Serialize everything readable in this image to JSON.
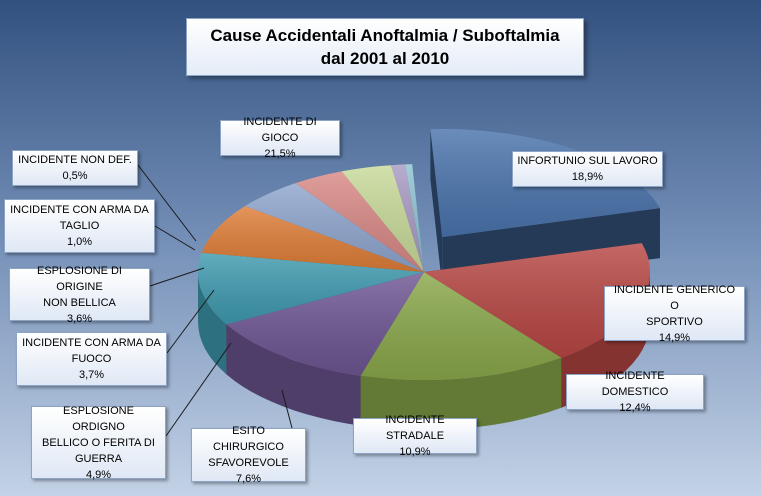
{
  "title": {
    "line1": "Cause Accidentali Anoftalmia / Suboftalmia",
    "line2": "dal 2001 al 2010"
  },
  "chart_data": {
    "type": "pie",
    "title": "Cause Accidentali Anoftalmia / Suboftalmia dal 2001 al 2010",
    "three_d": true,
    "exploded_slice": "INCIDENTE DI GIOCO",
    "slices": [
      {
        "key": "gioco",
        "label_lines": [
          "INCIDENTE DI GIOCO"
        ],
        "value": 21.5,
        "value_text": "21,5%",
        "color": "#4a74ad"
      },
      {
        "key": "lavoro",
        "label_lines": [
          "INFORTUNIO SUL LAVORO"
        ],
        "value": 18.9,
        "value_text": "18,9%",
        "color": "#b84744"
      },
      {
        "key": "generico",
        "label_lines": [
          "INCIDENTE GENERICO O",
          "SPORTIVO"
        ],
        "value": 14.9,
        "value_text": "14,9%",
        "color": "#8aa84b"
      },
      {
        "key": "domestico",
        "label_lines": [
          "INCIDENTE DOMESTICO"
        ],
        "value": 12.4,
        "value_text": "12,4%",
        "color": "#6e5693"
      },
      {
        "key": "stradale",
        "label_lines": [
          "INCIDENTE STRADALE"
        ],
        "value": 10.9,
        "value_text": "10,9%",
        "color": "#3f9bb0"
      },
      {
        "key": "chirurgico",
        "label_lines": [
          "ESITO CHIRURGICO",
          "SFAVOREVOLE"
        ],
        "value": 7.6,
        "value_text": "7,6%",
        "color": "#e07e38"
      },
      {
        "key": "ordigno",
        "label_lines": [
          "ESPLOSIONE ORDIGNO",
          "BELLICO O FERITA DI",
          "GUERRA"
        ],
        "value": 4.9,
        "value_text": "4,9%",
        "color": "#8fa6cf"
      },
      {
        "key": "fuoco",
        "label_lines": [
          "INCIDENTE CON ARMA DA",
          "FUOCO"
        ],
        "value": 3.7,
        "value_text": "3,7%",
        "color": "#d98986"
      },
      {
        "key": "esplosione",
        "label_lines": [
          "ESPLOSIONE DI ORIGINE",
          "NON BELLICA"
        ],
        "value": 3.6,
        "value_text": "3,6%",
        "color": "#c9db9a"
      },
      {
        "key": "taglio",
        "label_lines": [
          "INCIDENTE CON ARMA DA",
          "TAGLIO"
        ],
        "value": 1.0,
        "value_text": "1,0%",
        "color": "#a89bc4"
      },
      {
        "key": "nondef",
        "label_lines": [
          "INCIDENTE NON DEF."
        ],
        "value": 0.5,
        "value_text": "0,5%",
        "color": "#8fc3d3"
      }
    ]
  }
}
